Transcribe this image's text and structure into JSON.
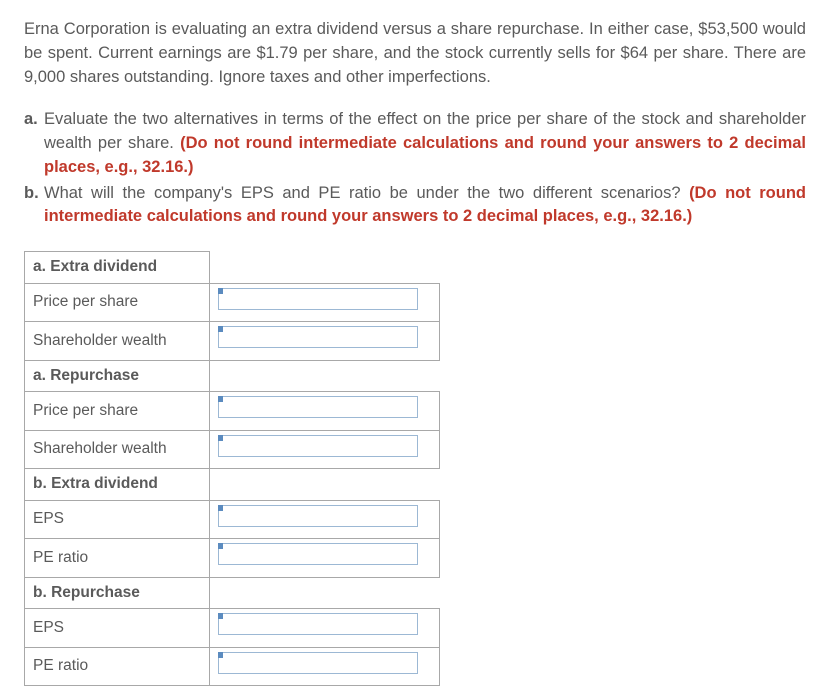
{
  "problem": {
    "intro": "Erna Corporation is evaluating an extra dividend versus a share repurchase. In either case, $53,500 would be spent. Current earnings are $1.79 per share, and the stock currently sells for $64 per share. There are 9,000 shares outstanding. Ignore taxes and other imperfections.",
    "a": {
      "bullet": "a.",
      "text": "Evaluate the two alternatives in terms of the effect on the price per share of the stock and shareholder wealth per share. ",
      "red": "(Do not round intermediate calculations and round your answers to 2 decimal places, e.g., 32.16.)"
    },
    "b": {
      "bullet": "b.",
      "text": "What will the company's EPS and PE ratio be under the two different scenarios? ",
      "red": "(Do not round intermediate calculations and round your answers to 2 decimal places, e.g., 32.16.)"
    }
  },
  "table": {
    "sections": [
      {
        "header": "a. Extra dividend",
        "rows": [
          "Price per share",
          "Shareholder wealth"
        ]
      },
      {
        "header": "a. Repurchase",
        "rows": [
          "Price per share",
          "Shareholder wealth"
        ]
      },
      {
        "header": "b. Extra dividend",
        "rows": [
          "EPS",
          "PE ratio"
        ]
      },
      {
        "header": "b. Repurchase",
        "rows": [
          "EPS",
          "PE ratio"
        ]
      }
    ]
  }
}
